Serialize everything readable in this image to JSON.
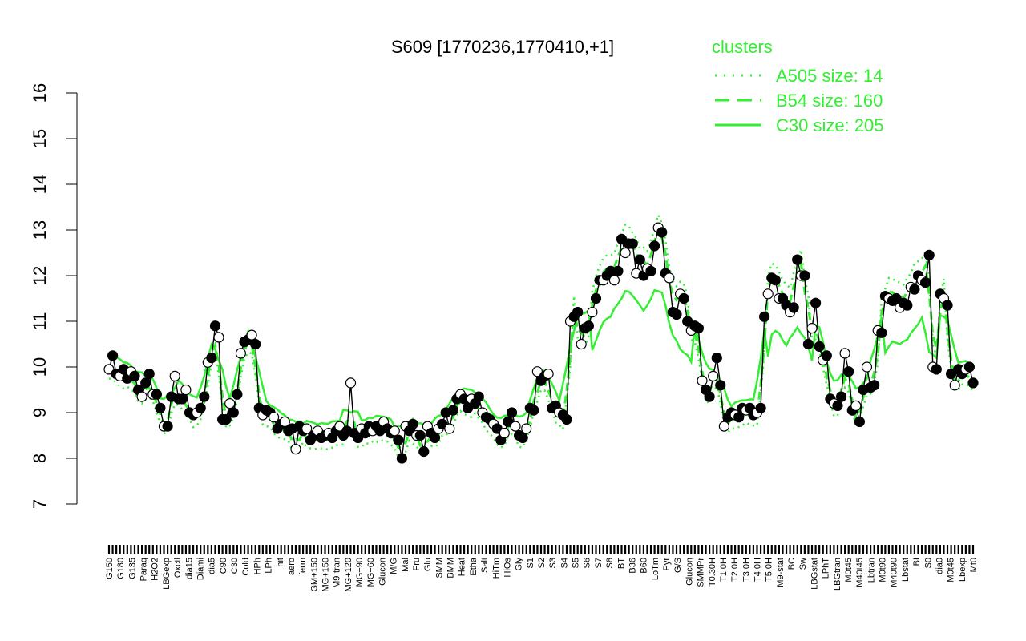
{
  "chart_data": {
    "type": "line",
    "title": "S609 [1770236,1770410,+1]",
    "ylim": [
      7,
      16
    ],
    "yticks": [
      "7",
      "8",
      "9",
      "10",
      "11",
      "12",
      "13",
      "14",
      "15",
      "16"
    ],
    "xticks": [
      "G150",
      "G180",
      "G135",
      "Paraq",
      "H2O2",
      "LBGexp",
      "Oxctl",
      "dia15",
      "Diami",
      "dia5",
      "C90",
      "C30",
      "Cold",
      "HPh",
      "LPh",
      "nit",
      "aero",
      "ferm",
      "GM+150",
      "MG+150",
      "M9-tran",
      "MG+120",
      "MG+90",
      "MG+60",
      "Glucon",
      "M/G",
      "Mal",
      "Fru",
      "Glu",
      "SMM",
      "BMM",
      "Heat",
      "Etha",
      "Salt",
      "HiTm",
      "HiOs",
      "Gly",
      "S1",
      "S2",
      "S3",
      "S4",
      "S5",
      "S6",
      "S7",
      "S8",
      "BT",
      "B36",
      "B60",
      "LoTm",
      "Pyr",
      "G/S",
      "Glucon",
      "SMMPr",
      "T0.30H",
      "T1.0H",
      "T2.0H",
      "T3.0H",
      "T4.0H",
      "T5.0H",
      "M9-stat",
      "BC",
      "Sw",
      "LBGstat",
      "LPhT",
      "LBGtran",
      "M0t45",
      "M40t45",
      "Lbtran",
      "M0t90",
      "M40t90",
      "Lbstat",
      "BI",
      "S0",
      "dia0",
      "M0t45",
      "Lbexp",
      "Mt0"
    ],
    "legend": {
      "title": "clusters",
      "placement": "top-right",
      "entries": [
        {
          "label": "A505 size: 14",
          "style": "dotted"
        },
        {
          "label": "B54 size: 160",
          "style": "dashed"
        },
        {
          "label": "C30 size: 205",
          "style": "solid"
        }
      ]
    },
    "series": [
      {
        "values": [
          9.95,
          10.25,
          9.85,
          9.8,
          9.95,
          9.75,
          9.9,
          9.8,
          9.5,
          9.35,
          9.65,
          9.85,
          9.4,
          9.4,
          9.1,
          8.7,
          8.7,
          9.35,
          9.8,
          9.3,
          9.3,
          9.5,
          9.0,
          8.95,
          9.0,
          9.1,
          9.35,
          10.1,
          10.2,
          10.9,
          10.65,
          8.85,
          8.85,
          9.2,
          9.0,
          9.4,
          10.3,
          10.55,
          10.6,
          10.7,
          10.5,
          9.1,
          8.95,
          9.05,
          9.0,
          8.9,
          8.65,
          8.75,
          8.8,
          8.6,
          8.65,
          8.2,
          8.7,
          8.6,
          8.65,
          8.4,
          8.5,
          8.6,
          8.45,
          8.5,
          8.55,
          8.45,
          8.6,
          8.7,
          8.5,
          8.6,
          9.65,
          8.55,
          8.45,
          8.65,
          8.55,
          8.7,
          8.6,
          8.7,
          8.6,
          8.8,
          8.65,
          8.55,
          8.6,
          8.4,
          8.0,
          8.7,
          8.6,
          8.75,
          8.5,
          8.5,
          8.15,
          8.7,
          8.55,
          8.45,
          8.65,
          8.75,
          9.0,
          8.65,
          9.05,
          9.3,
          9.4,
          9.3,
          9.1,
          9.3,
          9.2,
          9.35,
          9.0,
          8.9,
          8.85,
          8.75,
          8.65,
          8.4,
          8.55,
          8.8,
          9.0,
          8.7,
          8.5,
          8.45,
          8.65,
          9.1,
          9.05,
          9.9,
          9.7,
          9.8,
          9.85,
          9.1,
          9.15,
          9.0,
          8.95,
          8.85,
          11.0,
          11.1,
          11.2,
          10.5,
          10.85,
          10.9,
          11.2,
          11.5,
          11.9,
          11.9,
          12.0,
          12.1,
          11.9,
          12.1,
          12.8,
          12.5,
          12.7,
          12.7,
          12.05,
          12.35,
          12.0,
          12.15,
          12.1,
          12.65,
          13.05,
          12.95,
          12.05,
          11.95,
          11.2,
          11.15,
          11.6,
          11.5,
          11.0,
          10.8,
          10.9,
          10.85,
          9.7,
          9.5,
          9.35,
          9.8,
          10.2,
          9.6,
          8.7,
          8.9,
          9.0,
          8.95,
          8.9,
          9.1,
          9.05,
          9.1,
          8.95,
          9.0,
          9.1,
          11.1,
          11.6,
          11.95,
          11.9,
          11.5,
          11.5,
          11.35,
          11.2,
          11.3,
          12.35,
          12.0,
          12.0,
          10.5,
          10.85,
          11.4,
          10.45,
          10.15,
          10.25,
          9.3,
          9.2,
          9.15,
          9.35,
          10.3,
          9.9,
          9.05,
          9.15,
          8.8,
          9.5,
          10.0,
          9.55,
          9.6,
          10.8,
          10.75,
          11.55,
          11.5,
          11.45,
          11.5,
          11.3,
          11.4,
          11.35,
          11.75,
          11.7,
          12.0,
          11.9,
          11.85,
          12.45,
          10.0,
          9.95,
          11.6,
          11.5,
          11.35,
          9.85,
          9.6,
          9.95,
          9.85,
          9.95,
          10.0,
          9.65
        ]
      }
    ]
  }
}
